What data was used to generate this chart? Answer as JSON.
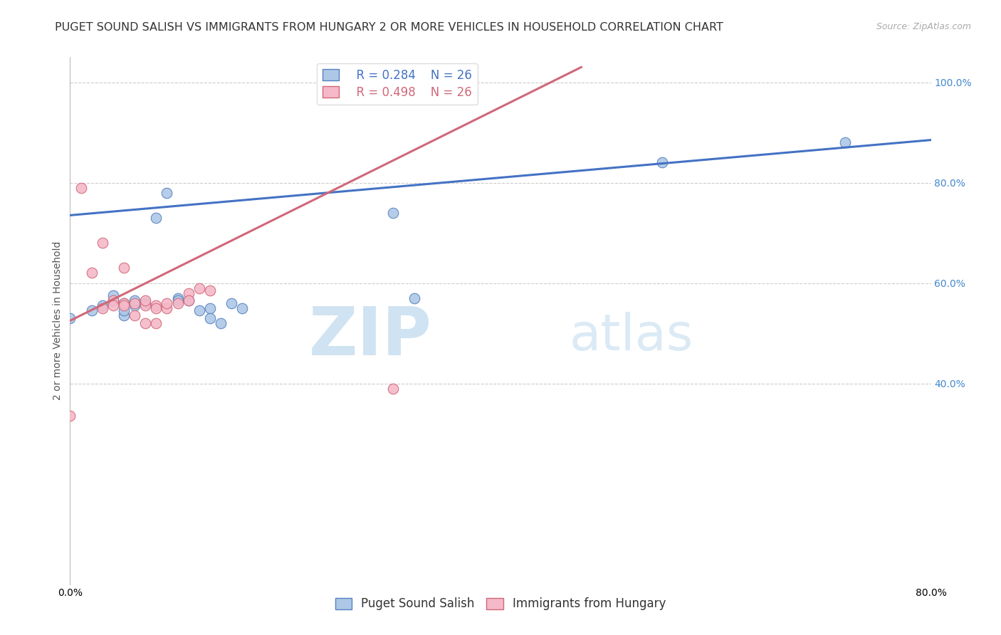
{
  "title": "PUGET SOUND SALISH VS IMMIGRANTS FROM HUNGARY 2 OR MORE VEHICLES IN HOUSEHOLD CORRELATION CHART",
  "source": "Source: ZipAtlas.com",
  "ylabel": "2 or more Vehicles in Household",
  "xmin": 0.0,
  "xmax": 0.8,
  "ymin": 0.0,
  "ymax": 1.05,
  "xtick_positions": [
    0.0,
    0.1,
    0.2,
    0.3,
    0.4,
    0.5,
    0.6,
    0.7,
    0.8
  ],
  "xticklabels": [
    "0.0%",
    "",
    "",
    "",
    "",
    "",
    "",
    "",
    "80.0%"
  ],
  "ytick_positions": [
    0.4,
    0.6,
    0.8,
    1.0
  ],
  "ytick_labels": [
    "40.0%",
    "60.0%",
    "80.0%",
    "100.0%"
  ],
  "blue_R": "R = 0.284",
  "blue_N": "N = 26",
  "pink_R": "R = 0.498",
  "pink_N": "N = 26",
  "blue_label": "Puget Sound Salish",
  "pink_label": "Immigrants from Hungary",
  "blue_color": "#adc8e6",
  "pink_color": "#f5b8c8",
  "blue_edge_color": "#5580c0",
  "pink_edge_color": "#d06878",
  "blue_line_color": "#4472c4",
  "pink_line_color": "#d06878",
  "blue_scatter_x": [
    0.0,
    0.02,
    0.03,
    0.04,
    0.04,
    0.05,
    0.05,
    0.05,
    0.06,
    0.06,
    0.07,
    0.08,
    0.09,
    0.1,
    0.1,
    0.11,
    0.12,
    0.13,
    0.14,
    0.15,
    0.16,
    0.3,
    0.32,
    0.55,
    0.72,
    0.13
  ],
  "blue_scatter_y": [
    0.53,
    0.545,
    0.555,
    0.565,
    0.575,
    0.56,
    0.535,
    0.545,
    0.555,
    0.565,
    0.56,
    0.73,
    0.78,
    0.57,
    0.565,
    0.565,
    0.545,
    0.55,
    0.52,
    0.56,
    0.55,
    0.74,
    0.57,
    0.84,
    0.88,
    0.53
  ],
  "pink_scatter_x": [
    0.0,
    0.01,
    0.02,
    0.03,
    0.03,
    0.04,
    0.04,
    0.05,
    0.05,
    0.05,
    0.06,
    0.06,
    0.07,
    0.07,
    0.07,
    0.08,
    0.08,
    0.08,
    0.09,
    0.09,
    0.1,
    0.11,
    0.11,
    0.12,
    0.13,
    0.3
  ],
  "pink_scatter_y": [
    0.335,
    0.79,
    0.62,
    0.55,
    0.68,
    0.565,
    0.555,
    0.63,
    0.56,
    0.555,
    0.56,
    0.535,
    0.52,
    0.555,
    0.565,
    0.52,
    0.555,
    0.55,
    0.55,
    0.56,
    0.56,
    0.58,
    0.565,
    0.59,
    0.585,
    0.39
  ],
  "blue_trend_x": [
    0.0,
    0.8
  ],
  "blue_trend_y": [
    0.735,
    0.885
  ],
  "pink_trend_x": [
    0.0,
    0.475
  ],
  "pink_trend_y": [
    0.525,
    1.03
  ],
  "background_color": "#ffffff",
  "grid_color": "#cccccc",
  "title_color": "#333333",
  "title_fontsize": 11.5,
  "source_fontsize": 9,
  "axis_label_fontsize": 10,
  "tick_fontsize": 10,
  "legend_fontsize": 12
}
